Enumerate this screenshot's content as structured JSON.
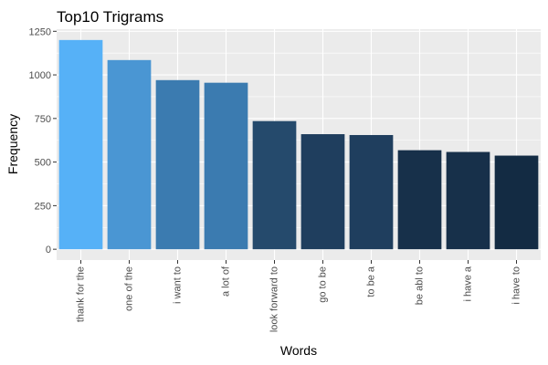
{
  "chart_data": {
    "type": "bar",
    "title": "Top10 Trigrams",
    "xlabel": "Words",
    "ylabel": "Frequency",
    "categories": [
      "thank for the",
      "one of the",
      "i want to",
      "a lot of",
      "look forward to",
      "go to be",
      "to be a",
      "be abl to",
      "i have a",
      "i have to"
    ],
    "values": [
      1200,
      1085,
      970,
      955,
      735,
      660,
      655,
      568,
      558,
      537
    ],
    "colors": [
      "#56B1F7",
      "#4A96D3",
      "#3B7BB0",
      "#3B7BB0",
      "#254A6C",
      "#1F3E5E",
      "#1F3E5E",
      "#17304A",
      "#17304A",
      "#132B43"
    ],
    "yticks": [
      0,
      250,
      500,
      750,
      1000,
      1250
    ],
    "ylim": [
      -62,
      1262
    ],
    "grid": true,
    "panel_background": "#EBEBEB",
    "legend": "none"
  }
}
